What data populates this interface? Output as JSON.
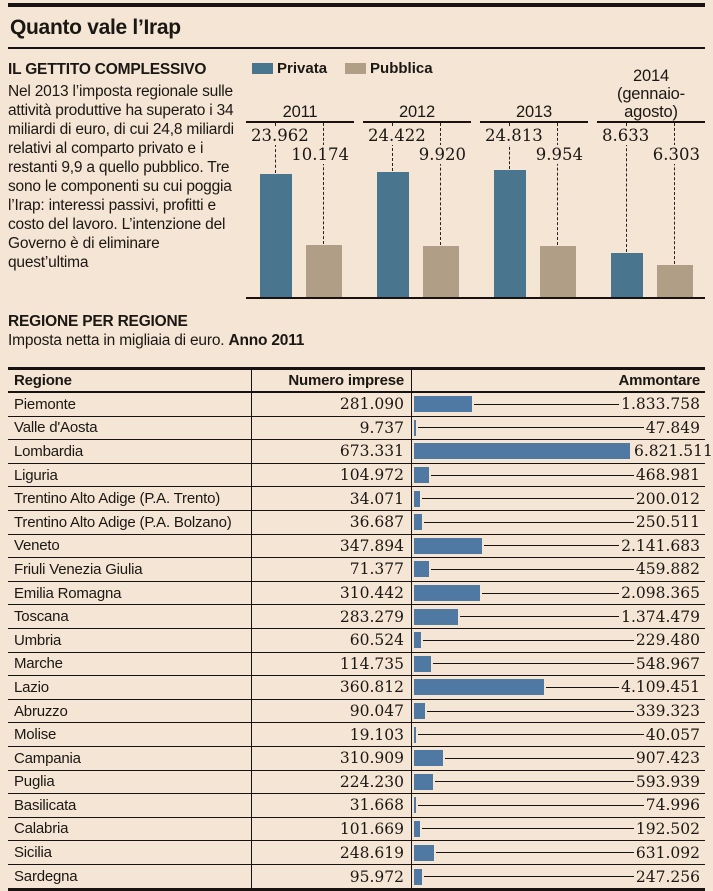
{
  "page": {
    "title": "Quanto vale l’Irap"
  },
  "colors": {
    "background": "#f5e5d4",
    "privata_blue": "#4a758f",
    "pubblica_tan": "#b09e87",
    "table_bar_blue": "#4f79a3",
    "ink": "#1b1713"
  },
  "gettito": {
    "heading": "IL GETTITO COMPLESSIVO",
    "body": "Nel 2013 l’imposta regionale sulle attività produttive ha superato i 34 miliardi di euro, di cui 24,8 miliardi relativi al comparto privato e i restanti 9,9 a quello pubblico. Tre sono le componenti su cui poggia l’Irap: interessi passivi, profitti e costo del lavoro. L’intenzione del Governo è di eliminare quest’ultima"
  },
  "regioni": {
    "heading": "REGIONE PER REGIONE",
    "subtitle_plain": "Imposta netta in migliaia di euro. ",
    "subtitle_bold": "Anno 2011"
  },
  "chart_data": [
    {
      "type": "bar",
      "title": "Il gettito complessivo",
      "categories": [
        "2011",
        "2012",
        "2013",
        "2014"
      ],
      "category_sublabels": [
        "",
        "",
        "",
        "(gennaio-agosto)"
      ],
      "series": [
        {
          "name": "Privata",
          "color": "#4a758f",
          "values": [
            23962,
            24422,
            24813,
            8633
          ],
          "labels": [
            "23.962",
            "24.422",
            "24.813",
            "8.633"
          ]
        },
        {
          "name": "Pubblica",
          "color": "#b09e87",
          "values": [
            10174,
            9920,
            9954,
            6303
          ],
          "labels": [
            "10.174",
            "9.920",
            "9.954",
            "6.303"
          ]
        }
      ],
      "ylim": [
        0,
        24813
      ],
      "grid": false,
      "legend_position": "top-left",
      "value_labels": true
    },
    {
      "type": "table",
      "title": "Regione per regione – Imposta netta in migliaia di euro. Anno 2011",
      "columns": [
        "Regione",
        "Numero imprese",
        "Ammontare"
      ],
      "bar_column": "Ammontare",
      "bar_color": "#4f79a3",
      "bar_max": 6821511,
      "rows": [
        [
          "Piemonte",
          "281.090",
          "1.833.758"
        ],
        [
          "Valle d'Aosta",
          "9.737",
          "47.849"
        ],
        [
          "Lombardia",
          "673.331",
          "6.821.511"
        ],
        [
          "Liguria",
          "104.972",
          "468.981"
        ],
        [
          "Trentino Alto Adige (P.A. Trento)",
          "34.071",
          "200.012"
        ],
        [
          "Trentino Alto Adige (P.A. Bolzano)",
          "36.687",
          "250.511"
        ],
        [
          "Veneto",
          "347.894",
          "2.141.683"
        ],
        [
          "Friuli Venezia Giulia",
          "71.377",
          "459.882"
        ],
        [
          "Emilia Romagna",
          "310.442",
          "2.098.365"
        ],
        [
          "Toscana",
          "283.279",
          "1.374.479"
        ],
        [
          "Umbria",
          "60.524",
          "229.480"
        ],
        [
          "Marche",
          "114.735",
          "548.967"
        ],
        [
          "Lazio",
          "360.812",
          "4.109.451"
        ],
        [
          "Abruzzo",
          "90.047",
          "339.323"
        ],
        [
          "Molise",
          "19.103",
          "40.057"
        ],
        [
          "Campania",
          "310.909",
          "907.423"
        ],
        [
          "Puglia",
          "224.230",
          "593.939"
        ],
        [
          "Basilicata",
          "31.668",
          "74.996"
        ],
        [
          "Calabria",
          "101.669",
          "192.502"
        ],
        [
          "Sicilia",
          "248.619",
          "631.092"
        ],
        [
          "Sardegna",
          "95.972",
          "247.256"
        ]
      ]
    }
  ]
}
